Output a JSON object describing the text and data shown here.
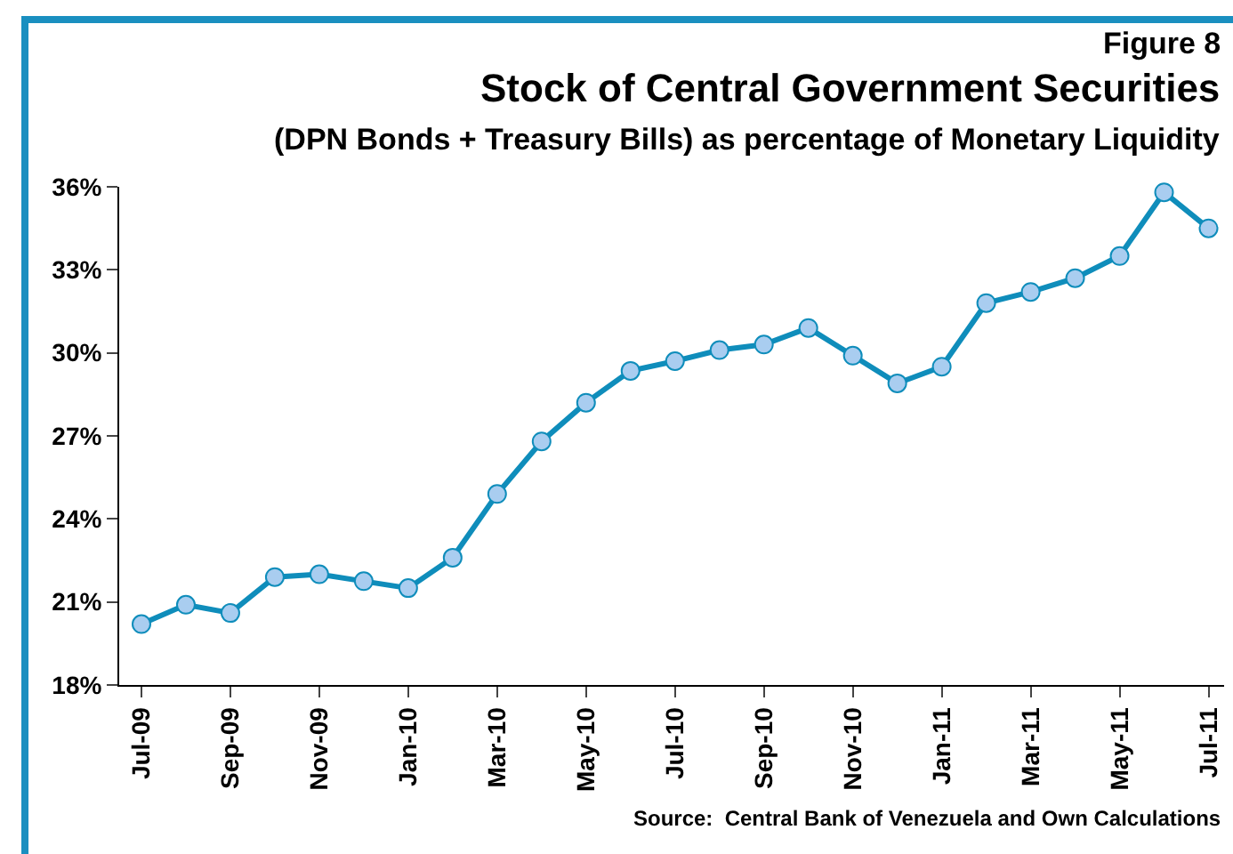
{
  "chart_data": {
    "type": "line",
    "title": "Stock of Central Government Securities",
    "subtitle": "(DPN Bonds + Treasury Bills) as percentage of Monetary Liquidity",
    "annotations": [
      "Figure 8",
      "Source:  Central Bank of Venezuela and Own Calculations"
    ],
    "categories": [
      "Jul-09",
      null,
      "Sep-09",
      null,
      "Nov-09",
      null,
      "Jan-10",
      null,
      "Mar-10",
      null,
      "May-10",
      null,
      "Jul-10",
      null,
      "Sep-10",
      null,
      "Nov-10",
      null,
      "Jan-11",
      null,
      "Mar-11",
      null,
      "May-11",
      null,
      "Jul-11"
    ],
    "series": [
      {
        "color": "#0f8dbb",
        "values": [
          20.2,
          20.9,
          20.6,
          21.9,
          22.0,
          21.75,
          21.5,
          22.6,
          24.9,
          26.8,
          28.2,
          29.35,
          29.7,
          30.1,
          30.3,
          30.9,
          29.9,
          28.9,
          29.5,
          31.8,
          32.2,
          32.7,
          33.5,
          35.8,
          34.5
        ]
      }
    ],
    "ylim": [
      18,
      36
    ],
    "yticks": [
      {
        "value": 18,
        "label": "18%"
      },
      {
        "value": 21,
        "label": "21%"
      },
      {
        "value": 24,
        "label": "24%"
      },
      {
        "value": 27,
        "label": "27%"
      },
      {
        "value": 30,
        "label": "30%"
      },
      {
        "value": 33,
        "label": "33%"
      },
      {
        "value": 36,
        "label": "36%"
      }
    ],
    "grid": false,
    "legend": false,
    "marker": "circle",
    "line_style": "solid"
  }
}
